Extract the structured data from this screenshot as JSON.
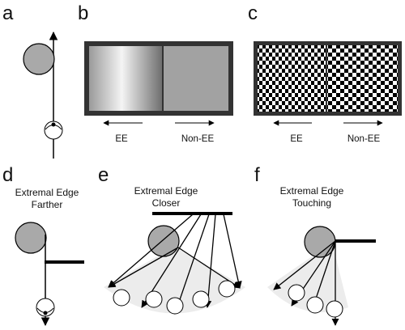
{
  "panels": {
    "a": {
      "letter": "a"
    },
    "b": {
      "letter": "b",
      "left_label": "EE",
      "right_label": "Non-EE"
    },
    "c": {
      "letter": "c",
      "left_label": "EE",
      "right_label": "Non-EE"
    },
    "d": {
      "letter": "d",
      "title_line1": "Extremal Edge",
      "title_line2": "Farther"
    },
    "e": {
      "letter": "e",
      "title_line1": "Extremal Edge",
      "title_line2": "Closer"
    },
    "f": {
      "letter": "f",
      "title_line1": "Extremal Edge",
      "title_line2": "Touching"
    }
  },
  "colors": {
    "cylinder": "#a9a9a9",
    "frame": "#333333",
    "flat_gray": "#a2a2a2",
    "fan": "#ececec"
  }
}
